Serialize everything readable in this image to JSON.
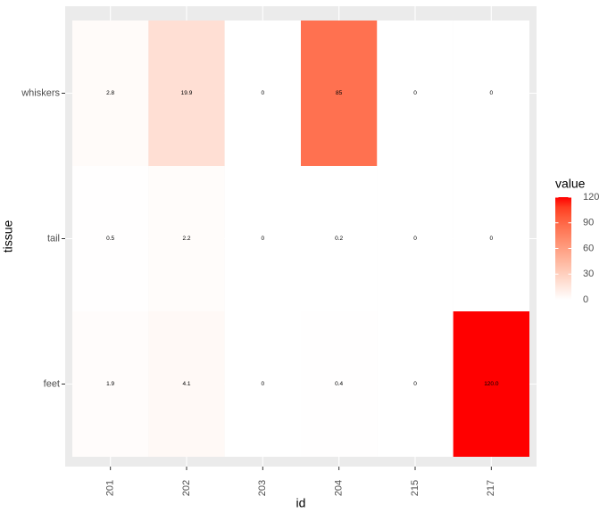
{
  "chart_data": {
    "type": "heatmap",
    "x_label": "id",
    "y_label": "tissue",
    "categories": [
      "201",
      "202",
      "203",
      "204",
      "215",
      "217"
    ],
    "y_categories": [
      "feet",
      "tail",
      "whiskers"
    ],
    "values": [
      [
        1.9,
        4.1,
        0,
        0.4,
        0,
        120
      ],
      [
        0.5,
        2.2,
        0,
        0.2,
        0,
        0
      ],
      [
        2.8,
        19.9,
        0,
        85,
        0,
        0
      ]
    ],
    "value_labels": [
      [
        "1.9",
        "4.1",
        "0",
        "0.4",
        "0",
        "120.0"
      ],
      [
        "0.5",
        "2.2",
        "0",
        "0.2",
        "0",
        "0"
      ],
      [
        "2.8",
        "19.9",
        "0",
        "85",
        "0",
        "0"
      ]
    ],
    "legend_title": "value",
    "color_low": "#ffffff",
    "color_high": "#ff0000",
    "clim": [
      0,
      120
    ],
    "cticks": [
      0,
      30,
      60,
      90,
      120
    ]
  }
}
